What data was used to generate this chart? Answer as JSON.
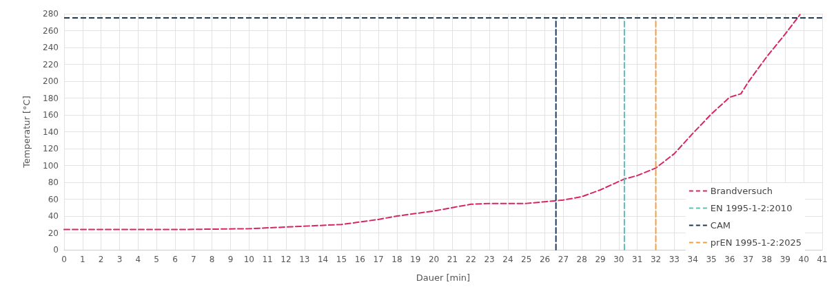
{
  "chart_data": {
    "type": "line",
    "xlabel": "Dauer [min]",
    "ylabel": "Temperatur [°C]",
    "xlim": [
      0,
      41
    ],
    "xticks": [
      0,
      1,
      2,
      3,
      4,
      5,
      6,
      7,
      8,
      9,
      10,
      11,
      12,
      13,
      14,
      15,
      16,
      17,
      18,
      19,
      20,
      21,
      22,
      23,
      24,
      25,
      26,
      27,
      28,
      29,
      30,
      31,
      32,
      33,
      34,
      35,
      36,
      37,
      38,
      39,
      40,
      41
    ],
    "ylim": [
      0,
      280
    ],
    "yticks": [
      0,
      20,
      40,
      60,
      80,
      100,
      120,
      140,
      160,
      180,
      200,
      220,
      240,
      260,
      280
    ],
    "grid": true,
    "legend": "bottom right",
    "marker": "none",
    "line_style": "dashed",
    "series": [
      {
        "name": "Brandversuch",
        "color": "#d6265e",
        "x": [
          0,
          2,
          4,
          6,
          8,
          10,
          12,
          14,
          15,
          16,
          17,
          18,
          19,
          20,
          21,
          22,
          23,
          24,
          25,
          26,
          27,
          28,
          29,
          30,
          30.3,
          31,
          32,
          33,
          34,
          35,
          36,
          36.6,
          37,
          38,
          39,
          39.8
        ],
        "values": [
          24,
          24,
          24,
          24,
          24.5,
          25,
          27,
          29,
          30,
          33,
          36,
          40,
          43,
          46,
          50,
          54,
          55,
          55,
          55,
          57,
          59,
          63,
          71,
          81,
          84,
          88,
          97,
          114,
          138,
          161,
          181,
          185,
          199,
          229,
          256,
          279
        ]
      },
      {
        "name": "EN 1995-1-2:2010",
        "color": "#5fbfb3",
        "x": [
          30.3,
          30.3
        ],
        "values": [
          0,
          275
        ]
      },
      {
        "name": "CAM",
        "color": "#1f3a57",
        "x": [
          26.6,
          26.6
        ],
        "values": [
          0,
          275
        ]
      },
      {
        "name": "prEN 1995-1-2:2025",
        "color": "#f0a040",
        "x": [
          32,
          32
        ],
        "values": [
          0,
          275
        ]
      }
    ],
    "ref_lines": [
      {
        "axis": "y",
        "value": 275,
        "color": "#1f3a57",
        "line_style": "dashed"
      }
    ]
  }
}
